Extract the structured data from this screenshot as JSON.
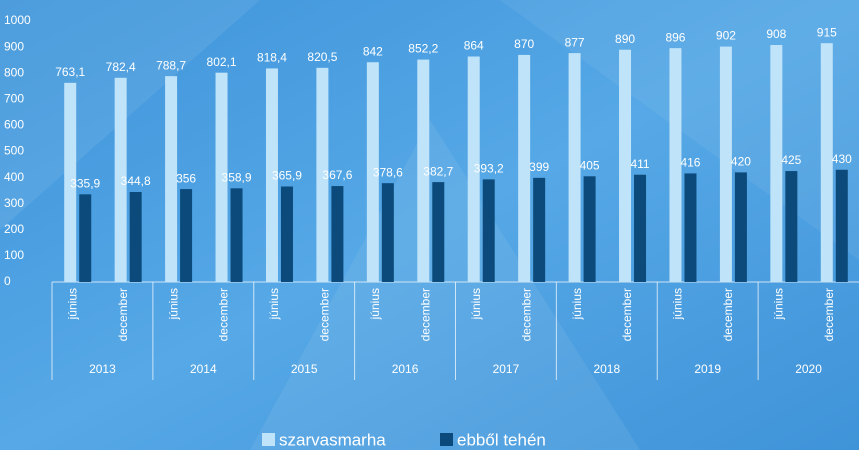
{
  "chart_data": {
    "type": "bar",
    "categories": [
      "június",
      "december",
      "június",
      "december",
      "június",
      "december",
      "június",
      "december",
      "június",
      "december",
      "június",
      "december",
      "június",
      "december",
      "június",
      "december"
    ],
    "category_groups": [
      "2013",
      "2014",
      "2015",
      "2016",
      "2017",
      "2018",
      "2019",
      "2020"
    ],
    "series": [
      {
        "name": "szarvasmarha",
        "color": "#bfe3f9",
        "values": [
          763.1,
          782.4,
          788.7,
          802.1,
          818.4,
          820.5,
          842,
          852.2,
          864,
          870,
          877,
          890,
          896,
          902,
          908,
          915
        ],
        "value_labels": [
          "763,1",
          "782,4",
          "788,7",
          "802,1",
          "818,4",
          "820,5",
          "842",
          "852,2",
          "864",
          "870",
          "877",
          "890",
          "896",
          "902",
          "908",
          "915"
        ]
      },
      {
        "name": "ebből tehén",
        "color": "#0b4a7a",
        "values": [
          335.9,
          344.8,
          356,
          358.9,
          365.9,
          367.6,
          378.6,
          382.7,
          393.2,
          399,
          405,
          411,
          416,
          420,
          425,
          430
        ],
        "value_labels": [
          "335,9",
          "344,8",
          "356",
          "358,9",
          "365,9",
          "367,6",
          "378,6",
          "382,7",
          "393,2",
          "399",
          "405",
          "411",
          "416",
          "420",
          "425",
          "430"
        ]
      }
    ],
    "ylim": [
      0,
      1000
    ],
    "yticks": [
      0,
      100,
      200,
      300,
      400,
      500,
      600,
      700,
      800,
      900,
      1000
    ],
    "grid": false,
    "legend": "bottom"
  }
}
